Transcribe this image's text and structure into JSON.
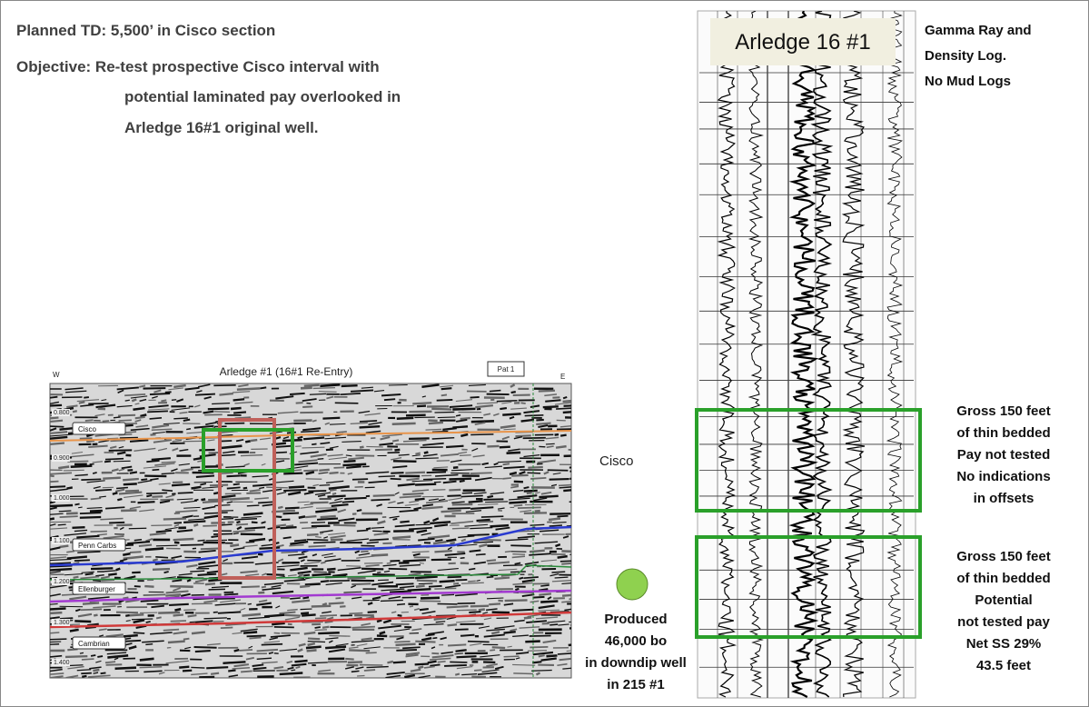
{
  "header": {
    "lines": [
      "Planned TD: 5,500’ in Cisco section",
      "Objective:  Re-test prospective Cisco interval with",
      "potential laminated pay overlooked in",
      "Arledge 16#1 original well."
    ]
  },
  "seismic": {
    "title": "Arledge #1 (16#1 Re-Entry)",
    "west": "W",
    "east": "E",
    "tag": "Pat 1",
    "times": [
      "0.800",
      "0.900",
      "1.000",
      "1.100",
      "1.200",
      "1.300",
      "1.400"
    ],
    "horizons": [
      "Cisco",
      "Penn Carbs",
      "Ellenburger",
      "Cambrian"
    ]
  },
  "log": {
    "title": "Arledge 16 #1",
    "note": [
      "Gamma Ray and",
      "Density Log.",
      "No Mud Logs"
    ],
    "box_notes": [
      [
        "Gross 150 feet",
        "of thin bedded",
        "Pay not tested",
        "No indications",
        " in offsets"
      ],
      [
        "Gross 150 feet",
        "of thin bedded",
        "Potential",
        "not tested pay",
        "Net SS 29%",
        "43.5 feet"
      ]
    ]
  },
  "cisco_label": "Cisco",
  "production": [
    "Produced",
    "46,000 bo",
    "in downdip well",
    "in 215 #1"
  ]
}
